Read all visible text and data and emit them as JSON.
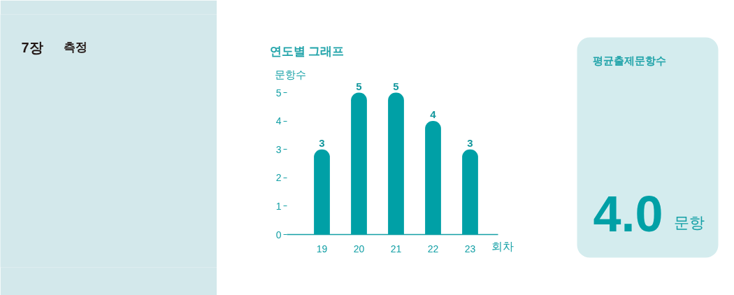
{
  "chart_data": [
    {
      "type": "other",
      "annotations": [
        "7장",
        "측정"
      ]
    },
    {
      "type": "bar",
      "title": "연도별 그래프",
      "ylabel": "문항수",
      "xlabel": "회차",
      "categories": [
        "19",
        "20",
        "21",
        "22",
        "23"
      ],
      "values": [
        3,
        5,
        5,
        4,
        3
      ],
      "color": "#00a0a6",
      "ylim": [
        0,
        5
      ],
      "yticks": [
        0,
        1,
        2,
        3,
        4,
        5
      ],
      "data_labels": true
    },
    {
      "type": "other",
      "title": "평균출제문항수",
      "annotations": [
        "4.0",
        "문항"
      ]
    }
  ]
}
